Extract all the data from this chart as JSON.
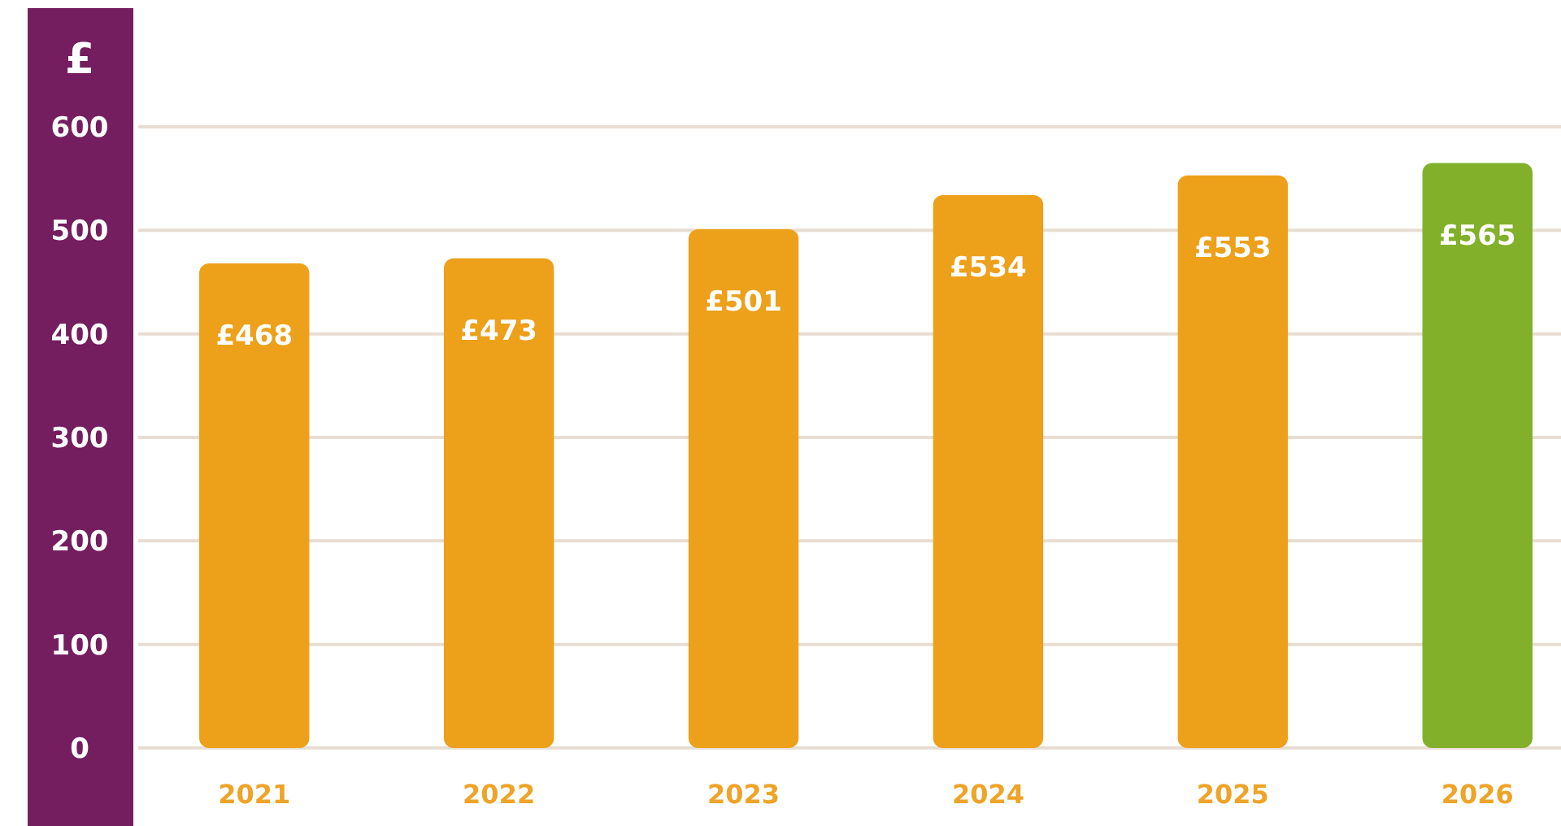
{
  "chart_data": {
    "type": "bar",
    "ylabel": "£",
    "categories": [
      "2021",
      "2022",
      "2023",
      "2024",
      "2025",
      "2026"
    ],
    "values": [
      468,
      473,
      501,
      534,
      553,
      565
    ],
    "colors": [
      "#eda01a",
      "#eda01a",
      "#eda01a",
      "#eda01a",
      "#eda01a",
      "#82b02a"
    ],
    "value_labels": [
      "£468",
      "£473",
      "£501",
      "£534",
      "£553",
      "£565"
    ],
    "ylim": [
      0,
      600
    ],
    "yticks": [
      0,
      100,
      200,
      300,
      400,
      500,
      600
    ],
    "grid": "y"
  }
}
